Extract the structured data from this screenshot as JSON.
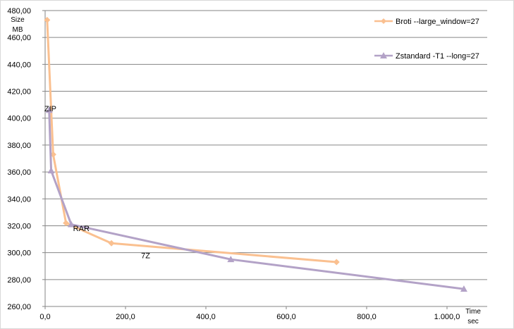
{
  "chart_data": {
    "type": "scatter",
    "title": "",
    "xlabel": "Time sec",
    "ylabel": "Size MB",
    "xlabel_lines": [
      "Time",
      "sec"
    ],
    "ylabel_lines": [
      "Size",
      "MB"
    ],
    "xlim": [
      0,
      1100
    ],
    "ylim": [
      260,
      480
    ],
    "xticks": [
      0,
      200,
      400,
      600,
      800,
      1000
    ],
    "xtick_labels": [
      "0,0",
      "200,0",
      "400,0",
      "600,0",
      "800,0",
      "1.000,0"
    ],
    "yticks": [
      260,
      280,
      300,
      320,
      340,
      360,
      380,
      400,
      420,
      440,
      460,
      480
    ],
    "ytick_labels": [
      "260,00",
      "280,00",
      "300,00",
      "320,00",
      "340,00",
      "360,00",
      "380,00",
      "400,00",
      "420,00",
      "440,00",
      "460,00",
      "480,00"
    ],
    "grid": "horizontal",
    "legend_position": "top-right",
    "series": [
      {
        "name": "Broti --large_window=27",
        "color": "#fac090",
        "marker": "diamond",
        "points": [
          [
            5,
            473
          ],
          [
            20,
            373
          ],
          [
            52,
            322
          ],
          [
            165,
            307
          ],
          [
            725,
            293
          ]
        ]
      },
      {
        "name": "Zstandard -T1 --long=27",
        "color": "#b3a2c7",
        "marker": "triangle",
        "points": [
          [
            10,
            406
          ],
          [
            15,
            361
          ],
          [
            65,
            321
          ],
          [
            462,
            295
          ],
          [
            1042,
            273
          ]
        ]
      }
    ],
    "annotations": [
      {
        "text": "ZIP",
        "x": 13,
        "y": 405
      },
      {
        "text": "RAR",
        "x": 90,
        "y": 316
      },
      {
        "text": "7Z",
        "x": 250,
        "y": 296
      }
    ]
  }
}
